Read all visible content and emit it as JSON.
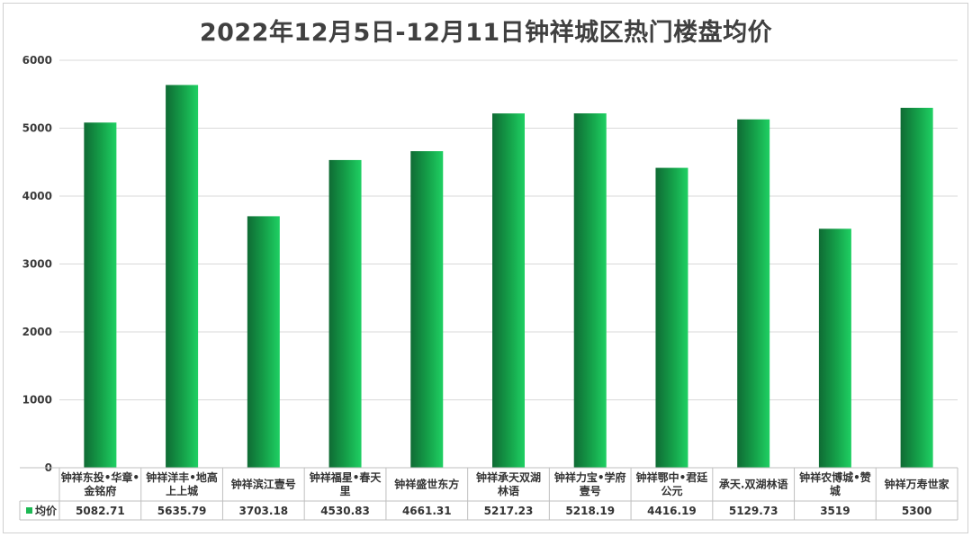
{
  "chart_data": {
    "type": "bar",
    "title": "2022年12月5日-12月11日钟祥城区热门楼盘均价",
    "categories": [
      [
        "钟祥东投•华章•",
        "金铭府"
      ],
      [
        "钟祥洋丰•地高",
        "上上城"
      ],
      [
        "钟祥滨江壹号"
      ],
      [
        "钟祥福星•春天",
        "里"
      ],
      [
        "钟祥盛世东方"
      ],
      [
        "钟祥承天双湖",
        "林语"
      ],
      [
        "钟祥力宝•学府",
        "壹号"
      ],
      [
        "钟祥鄂中•君廷",
        "公元"
      ],
      [
        "承天.双湖林语"
      ],
      [
        "钟祥农博城•赞",
        "城"
      ],
      [
        "钟祥万寿世家"
      ]
    ],
    "series": [
      {
        "name": "均价",
        "values": [
          5082.71,
          5635.79,
          3703.18,
          4530.83,
          4661.31,
          5217.23,
          5218.19,
          4416.19,
          5129.73,
          3519,
          5300
        ],
        "value_labels": [
          "5082.71",
          "5635.79",
          "3703.18",
          "4530.83",
          "4661.31",
          "5217.23",
          "5218.19",
          "4416.19",
          "5129.73",
          "3519",
          "5300"
        ],
        "color": "#1db954"
      }
    ],
    "ylim": [
      0,
      6000
    ],
    "yticks": [
      0,
      1000,
      2000,
      3000,
      4000,
      5000,
      6000
    ],
    "grid": true,
    "data_table": true,
    "legend": "in-data-table"
  }
}
